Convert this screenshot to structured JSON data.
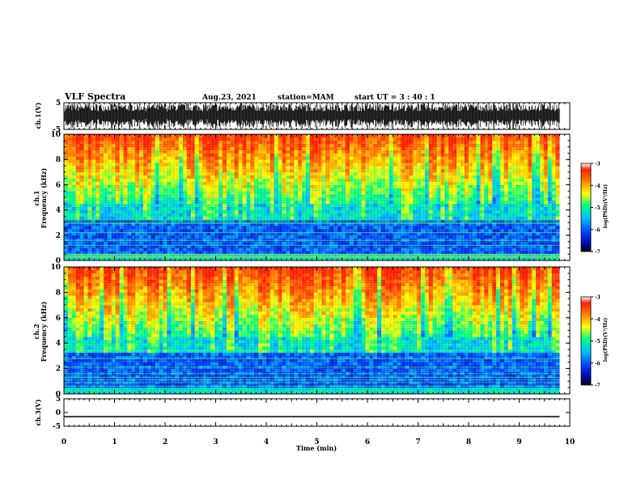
{
  "header": {
    "title": "VLF Spectra",
    "date": "Aug.23, 2021",
    "station": "station=MAM",
    "start_ut": "start UT =  3 : 40 : 1"
  },
  "chart_data": [
    {
      "type": "line",
      "panel": "ch1-waveform",
      "ylabel": "ch.1(V)",
      "ylim": [
        -5,
        5
      ],
      "yticks": [
        "5",
        "-5"
      ],
      "xlim": [
        0,
        10
      ],
      "description_color": "#000000"
    },
    {
      "type": "heatmap",
      "panel": "ch1-spectrogram",
      "ylabel_channel": "ch.1",
      "ylabel": "Frequency (kHz)",
      "ylim": [
        0,
        10
      ],
      "yticks": [
        "0",
        "2",
        "4",
        "6",
        "8",
        "10"
      ],
      "xlim": [
        0,
        10
      ],
      "colorbar": {
        "label": "log(PSD)(V²/Hz)",
        "range": [
          -7,
          -3
        ],
        "ticks": [
          "-3",
          "-4",
          "-5",
          "-6",
          "-7"
        ]
      }
    },
    {
      "type": "heatmap",
      "panel": "ch2-spectrogram",
      "ylabel_channel": "ch.2",
      "ylabel": "Frequency (kHz)",
      "ylim": [
        0,
        10
      ],
      "yticks": [
        "0",
        "2",
        "4",
        "6",
        "8",
        "10"
      ],
      "xlim": [
        0,
        10
      ],
      "colorbar": {
        "label": "log(PSD)(V²/Hz)",
        "range": [
          -7,
          -3
        ],
        "ticks": [
          "-3",
          "-4",
          "-5",
          "-6",
          "-7"
        ]
      }
    },
    {
      "type": "line",
      "panel": "ch3-voltage",
      "ylabel": "ch.3(V)",
      "ylim": [
        -5,
        5
      ],
      "yticks": [
        "5",
        "0",
        "-5"
      ],
      "xlim": [
        0,
        10
      ],
      "values": [
        -1.5,
        -1.5
      ],
      "x": [
        0,
        9.8
      ]
    }
  ],
  "xaxis": {
    "label": "Time (min)",
    "ticks": [
      "0",
      "1",
      "2",
      "3",
      "4",
      "5",
      "6",
      "7",
      "8",
      "9",
      "10"
    ],
    "range": [
      0,
      10
    ]
  },
  "colors": {
    "waveform": "#000000",
    "scale": [
      "#000000",
      "#0000a0",
      "#0040ff",
      "#00c0ff",
      "#00ff80",
      "#ffff00",
      "#ff8000",
      "#ff2000",
      "#ffffff"
    ]
  }
}
